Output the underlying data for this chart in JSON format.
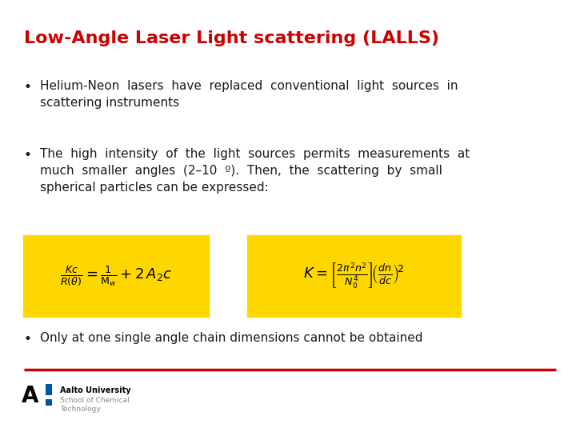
{
  "title": "Low-Angle Laser Light scattering (LALLS)",
  "title_color": "#CC0000",
  "title_fontsize": 16,
  "bg_color": "#FFFFFF",
  "formula_bg": "#FFD700",
  "formula1": "$\\frac{Kc}{R(\\theta)} = \\frac{1}{\\mathrm{M}_w} + 2\\,A_2 c$",
  "formula2": "$K = \\left[\\frac{2\\pi^2 n^2}{N_0^4}\\right]\\!\\left(\\frac{dn}{dc}\\right)^{\\!2}$",
  "separator_color": "#CC0000",
  "text_color": "#1A1A1A",
  "body_fontsize": 11,
  "aalto_text1": "Aalto University",
  "aalto_text2": "School of Chemical",
  "aalto_text3": "Technology",
  "bullet3": "Only at one single angle chain dimensions cannot be obtained"
}
